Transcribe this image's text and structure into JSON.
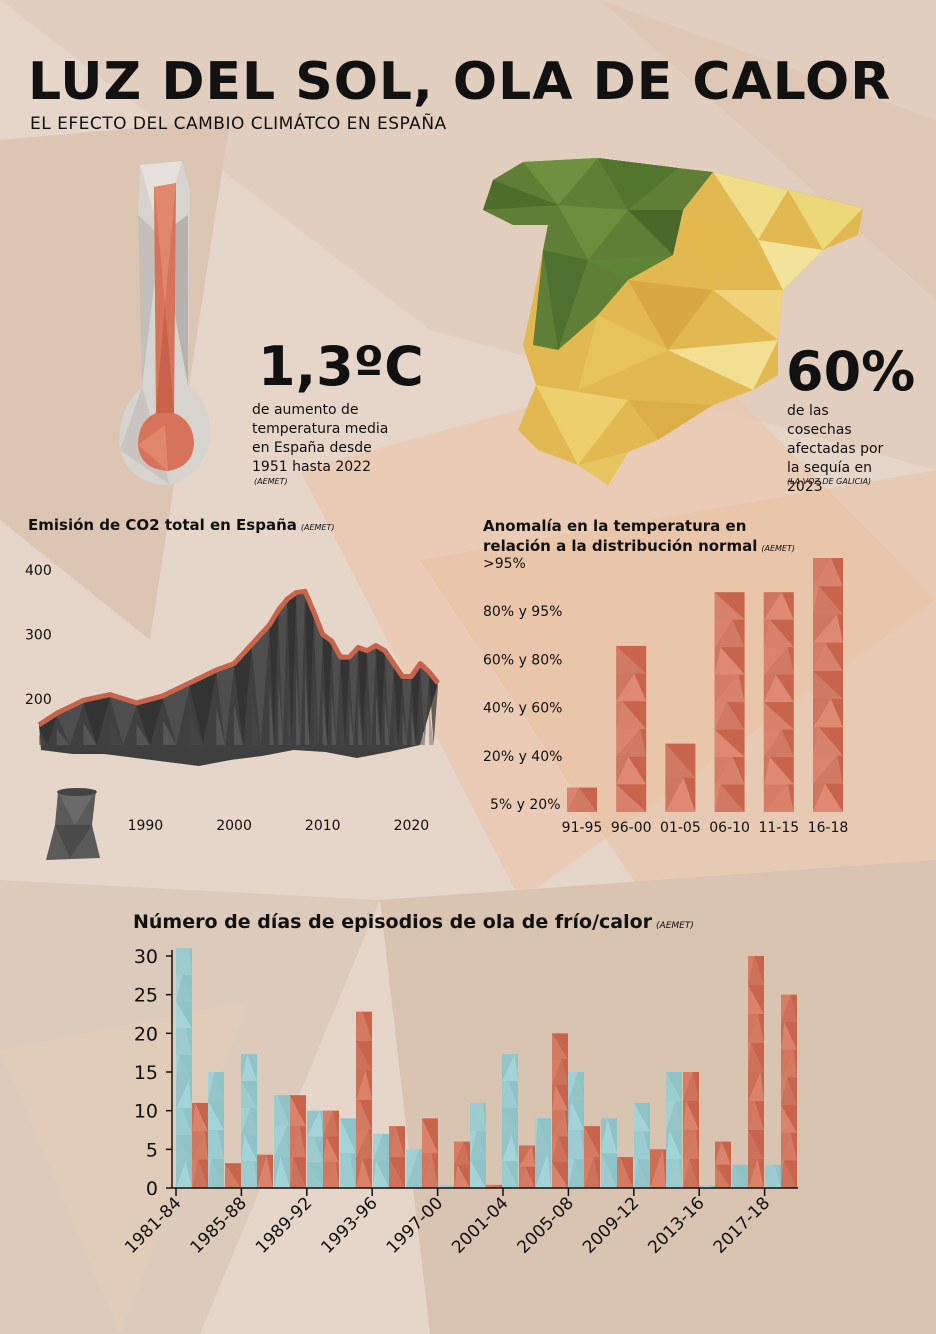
{
  "header": {
    "title": "LUZ DEL SOL, OLA DE CALOR",
    "subtitle": "EL EFECTO DEL CAMBIO CLIMÁTCO EN ESPAÑA"
  },
  "stats": {
    "temperature": {
      "value": "1,3ºC",
      "description": "de aumento de temperatura media en España desde 1951 hasta 2022",
      "source": "(AEMET)"
    },
    "harvest": {
      "value": "60%",
      "description": "de las cosechas afectadas por la sequía en 2023",
      "source": "(LA VOZ DE GALICIA)"
    }
  },
  "colors": {
    "accent_red": "#c8644c",
    "accent_blue": "#8ec4c8",
    "dark_gray": "#3c3c3c",
    "map_green": "#5a7f33",
    "map_yellow": "#e8cf6a",
    "background": "#e6d6c9"
  },
  "chart_data": [
    {
      "id": "co2",
      "type": "area",
      "title": "Emisión de CO2 total en España",
      "source": "(AEMET)",
      "xlabel": "",
      "ylabel": "",
      "x_ticks": [
        "1990",
        "2000",
        "2010",
        "2020"
      ],
      "y_ticks": [
        "400",
        "300",
        "200"
      ],
      "xlim": [
        1978,
        2023
      ],
      "ylim": [
        90,
        400
      ],
      "series": [
        {
          "x": [
            1978,
            1980,
            1983,
            1986,
            1989,
            1992,
            1995,
            1998,
            2000,
            2002,
            2004,
            2005,
            2006,
            2007,
            2008,
            2009,
            2010,
            2011,
            2012,
            2013,
            2014,
            2015,
            2016,
            2017,
            2018,
            2019,
            2020,
            2021,
            2022,
            2023
          ],
          "y": [
            160,
            178,
            198,
            207,
            194,
            205,
            225,
            245,
            255,
            285,
            315,
            338,
            355,
            365,
            367,
            335,
            300,
            290,
            265,
            265,
            280,
            275,
            283,
            275,
            255,
            235,
            235,
            255,
            242,
            225
          ]
        }
      ]
    },
    {
      "id": "anomaly",
      "type": "bar",
      "title": "Anomalía en la temperatura en relación a la distribución normal",
      "source": "(AEMET)",
      "categories": [
        "91-95",
        "96-00",
        "01-05",
        "06-10",
        "11-15",
        "16-18"
      ],
      "y_ticks": [
        ">95%",
        "80% y 95%",
        "60% y 80%",
        "40% y 60%",
        "20% y 40%",
        "5% y 20%"
      ],
      "values": [
        0.5,
        3.4,
        1.4,
        4.5,
        4.5,
        5.2
      ],
      "ylim": [
        0,
        5.2
      ]
    },
    {
      "id": "waves",
      "type": "bar",
      "title": "Número de días de episodios de ola de frío/calor",
      "source": "(AEMET)",
      "x_ticks": [
        "1981-84",
        "1985-88",
        "1989-92",
        "1993-96",
        "1997-00",
        "2001-04",
        "2005-08",
        "2009-12",
        "2013-16",
        "2017-18"
      ],
      "y_ticks": [
        "30",
        "25",
        "20",
        "15",
        "10",
        "5",
        "0"
      ],
      "ylim": [
        0,
        30
      ],
      "series": [
        {
          "name": "frío",
          "color": "#8ec4c8",
          "values": [
            31,
            15,
            17.3,
            12,
            10,
            9,
            7,
            5,
            0.3,
            11,
            0,
            17.3,
            9,
            15,
            9,
            0,
            11,
            15,
            0.3,
            3,
            3
          ]
        },
        {
          "name": "calor",
          "color": "#c8644c",
          "values": [
            11,
            3.2,
            4.3,
            12,
            10,
            22.8,
            8,
            9,
            6,
            0.4,
            5.5,
            20,
            8,
            4,
            5,
            15,
            6,
            30,
            25
          ]
        }
      ]
    }
  ]
}
